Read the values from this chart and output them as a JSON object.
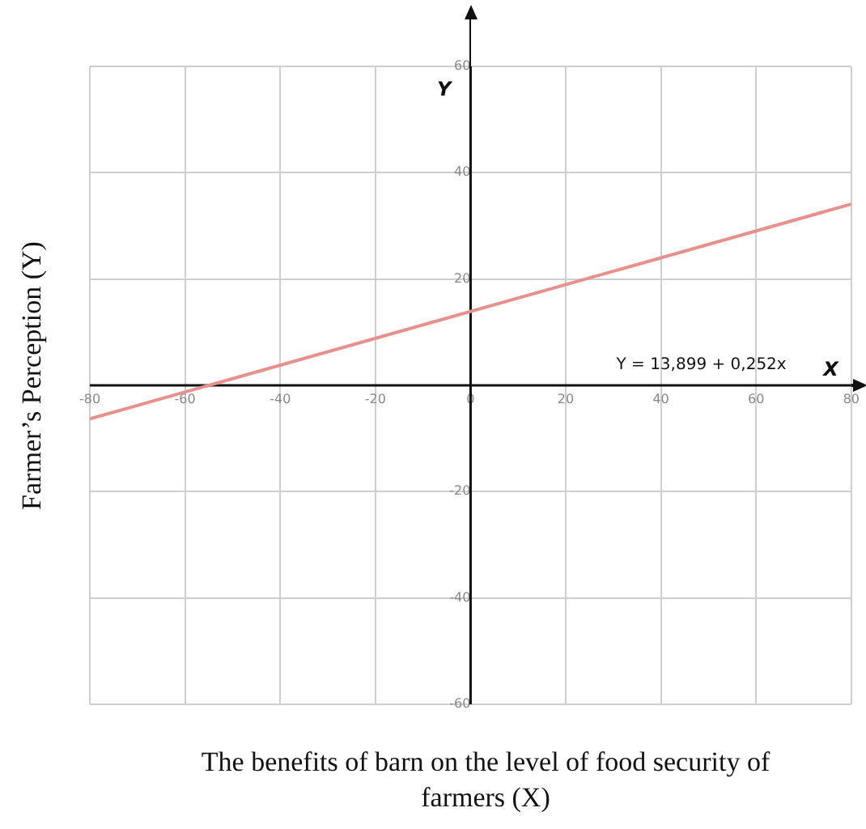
{
  "chart_data": {
    "type": "line",
    "xlabel": "The benefits of barn on the level of food security of farmers (X)",
    "ylabel": "Farmer’s Perception (Y)",
    "annotations": [
      "Y",
      "X",
      "Y = 13,899 + 0,252x"
    ],
    "series": [
      {
        "color": "#e8908c",
        "x": [
          -80,
          80
        ],
        "values": [
          -6.3,
          34.1
        ]
      }
    ],
    "xlim": [
      -80,
      80
    ],
    "xticks": [
      -80,
      -60,
      -40,
      -20,
      0,
      20,
      40,
      60,
      80
    ],
    "ylim": [
      -60,
      60
    ],
    "yticks": [
      -60,
      -40,
      -20,
      {
        "value": 0,
        "label": null
      },
      20,
      40,
      60
    ],
    "grid": true,
    "legend": false,
    "marker": "none",
    "line_style": "solid"
  }
}
